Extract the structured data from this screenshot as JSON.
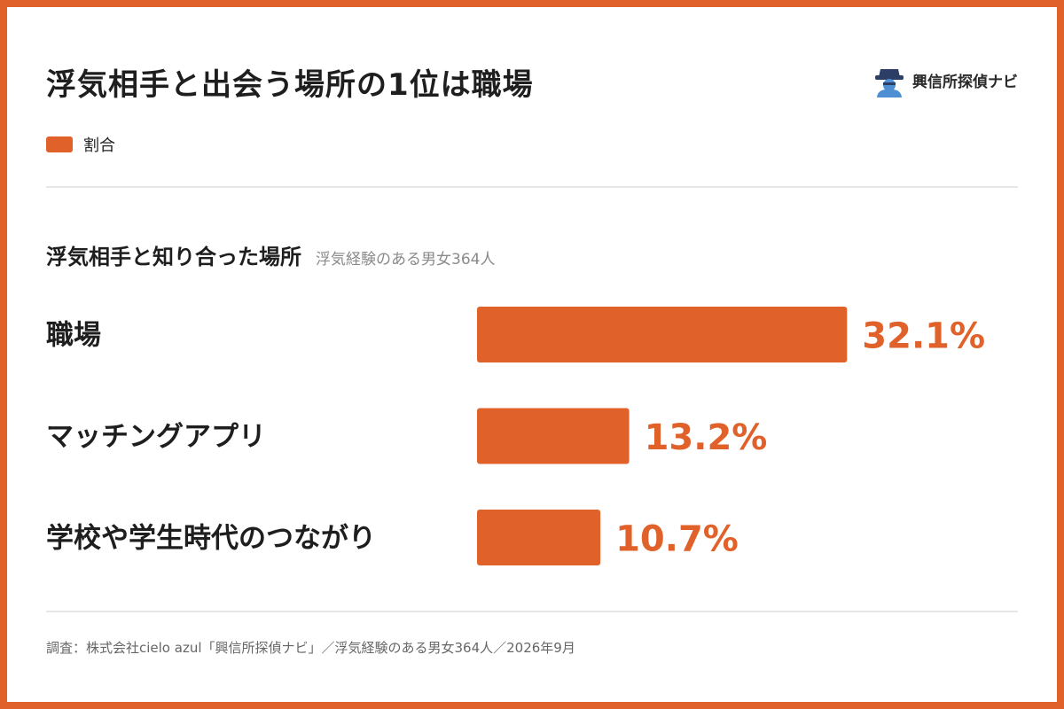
{
  "title": "浮気相手と出会う場所の1位は職場",
  "brand": {
    "name": "興信所探偵ナビ",
    "icon": "detective-logo-icon"
  },
  "legend": {
    "label": "割合",
    "color": "#e0622a"
  },
  "subtitle": {
    "main": "浮気相手と知り合った場所",
    "note": "浮気経験のある男女364人"
  },
  "chart_data": {
    "type": "bar",
    "orientation": "horizontal",
    "categories": [
      "職場",
      "マッチングアプリ",
      "学校や学生時代のつながり"
    ],
    "series": [
      {
        "name": "割合",
        "values": [
          32.1,
          13.2,
          10.7
        ],
        "color": "#e0622a"
      }
    ],
    "value_labels": [
      "32.1%",
      "13.2%",
      "10.7%"
    ],
    "unit": "%",
    "grid": false,
    "legend_position": "top-left"
  },
  "footer": "調査：株式会社cielo azul「興信所探偵ナビ」／浮気経験のある男女364人／2026年9月",
  "colors": {
    "accent": "#e0622a",
    "text": "#1e1e1e",
    "muted": "#8a8a8a"
  }
}
